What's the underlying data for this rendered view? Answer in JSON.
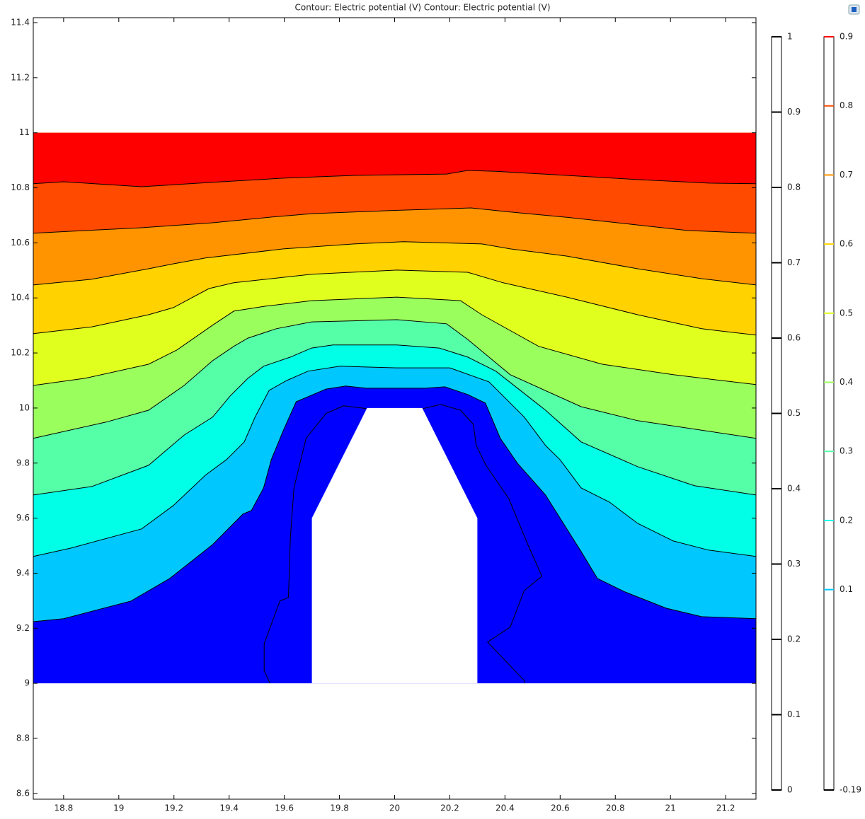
{
  "chart_data": {
    "type": "contour",
    "title": "Contour: Electric potential (V)  Contour: Electric potential (V)",
    "xlim": [
      18.69,
      21.31
    ],
    "ylim": [
      8.579,
      11.418
    ],
    "xticks": [
      18.8,
      19,
      19.2,
      19.4,
      19.6,
      19.8,
      20,
      20.2,
      20.4,
      20.6,
      20.8,
      21,
      21.2
    ],
    "yticks": [
      8.6,
      8.8,
      9,
      9.2,
      9.4,
      9.6,
      9.8,
      10,
      10.2,
      10.4,
      10.6,
      10.8,
      11,
      11.2,
      11.4
    ],
    "domain_ylim": [
      9,
      11
    ],
    "base_color": "#0000ff",
    "excluded": {
      "x": [
        19.7,
        19.7,
        19.9,
        20.1,
        20.3,
        20.3
      ],
      "y": [
        9,
        9.6,
        10,
        10,
        9.6,
        9
      ]
    },
    "series": [
      {
        "level": 0,
        "x": [
          19.548,
          19.527,
          19.527,
          19.584,
          19.615,
          19.622,
          19.635,
          19.679,
          19.751,
          19.815,
          19.897,
          null,
          20.103,
          20.167,
          20.239,
          20.285,
          20.296,
          20.331,
          20.414,
          20.483,
          20.534,
          20.47,
          20.457,
          20.419,
          20.337,
          20.47,
          20.473
        ],
        "y": [
          9.0,
          9.046,
          9.144,
          9.299,
          9.312,
          9.53,
          9.71,
          9.89,
          9.98,
          10.008,
          9.998,
          null,
          9.998,
          10.013,
          9.992,
          9.941,
          9.864,
          9.792,
          9.671,
          9.504,
          9.389,
          9.337,
          9.304,
          9.204,
          9.15,
          9.01,
          9.0
        ]
      },
      {
        "level": 0.1,
        "color": "#00c8ff",
        "x": [
          18.69,
          18.8,
          19.044,
          19.185,
          19.34,
          19.45,
          19.481,
          19.525,
          19.553,
          19.597,
          19.643,
          19.751,
          19.823,
          19.897,
          20.11,
          20.182,
          20.265,
          20.329,
          20.383,
          20.445,
          20.547,
          20.676,
          20.735,
          20.835,
          20.984,
          21.113,
          21.31
        ],
        "y": [
          9.224,
          9.235,
          9.299,
          9.381,
          9.504,
          9.615,
          9.628,
          9.71,
          9.813,
          9.92,
          10.023,
          10.069,
          10.08,
          10.072,
          10.072,
          10.077,
          10.049,
          10.018,
          9.89,
          9.8,
          9.684,
          9.479,
          9.381,
          9.332,
          9.273,
          9.242,
          9.235
        ]
      },
      {
        "level": 0.2,
        "color": "#00ffe6",
        "x": [
          18.69,
          18.826,
          19.083,
          19.198,
          19.314,
          19.391,
          19.455,
          19.494,
          19.545,
          19.609,
          19.686,
          19.802,
          20.008,
          20.2,
          20.342,
          20.47,
          20.547,
          20.599,
          20.676,
          20.779,
          20.881,
          21.01,
          21.138,
          21.31
        ],
        "y": [
          9.461,
          9.491,
          9.561,
          9.646,
          9.756,
          9.813,
          9.877,
          9.967,
          10.064,
          10.1,
          10.134,
          10.152,
          10.146,
          10.146,
          10.095,
          9.967,
          9.864,
          9.813,
          9.71,
          9.658,
          9.581,
          9.517,
          9.484,
          9.461
        ]
      },
      {
        "level": 0.3,
        "color": "#55ffa8",
        "x": [
          18.69,
          18.903,
          19.108,
          19.237,
          19.34,
          19.404,
          19.468,
          19.525,
          19.622,
          19.699,
          19.776,
          20.008,
          20.162,
          20.265,
          20.367,
          20.547,
          20.676,
          20.881,
          21.087,
          21.31
        ],
        "y": [
          9.684,
          9.715,
          9.792,
          9.902,
          9.967,
          10.044,
          10.108,
          10.152,
          10.185,
          10.218,
          10.229,
          10.229,
          10.218,
          10.185,
          10.134,
          9.992,
          9.877,
          9.787,
          9.718,
          9.684
        ]
      },
      {
        "level": 0.4,
        "color": "#9aff5c",
        "x": [
          18.69,
          18.954,
          19.108,
          19.237,
          19.34,
          19.417,
          19.468,
          19.571,
          19.699,
          20.008,
          20.188,
          20.265,
          20.419,
          20.676,
          20.881,
          21.31
        ],
        "y": [
          9.89,
          9.949,
          9.992,
          10.082,
          10.172,
          10.224,
          10.254,
          10.288,
          10.313,
          10.321,
          10.306,
          10.249,
          10.121,
          10.005,
          9.954,
          9.89
        ]
      },
      {
        "level": 0.5,
        "color": "#e0ff1e",
        "x": [
          18.69,
          18.877,
          19.108,
          19.211,
          19.34,
          19.417,
          19.532,
          19.699,
          20.008,
          20.239,
          20.316,
          20.522,
          20.753,
          21.01,
          21.31
        ],
        "y": [
          10.082,
          10.108,
          10.159,
          10.211,
          10.301,
          10.352,
          10.37,
          10.39,
          10.403,
          10.39,
          10.339,
          10.224,
          10.159,
          10.121,
          10.085
        ]
      },
      {
        "level": 0.6,
        "color": "#ffd200",
        "x": [
          18.69,
          18.903,
          19.108,
          19.198,
          19.327,
          19.417,
          19.699,
          20.008,
          20.265,
          20.393,
          20.624,
          20.881,
          21.113,
          21.31
        ],
        "y": [
          10.27,
          10.295,
          10.339,
          10.365,
          10.434,
          10.455,
          10.486,
          10.501,
          10.493,
          10.455,
          10.403,
          10.339,
          10.288,
          10.265
        ]
      },
      {
        "level": 0.7,
        "color": "#ff9400",
        "x": [
          18.69,
          18.903,
          19.108,
          19.198,
          19.314,
          19.597,
          19.853,
          20.033,
          20.316,
          20.419,
          20.624,
          20.881,
          21.113,
          21.31
        ],
        "y": [
          10.447,
          10.468,
          10.506,
          10.524,
          10.545,
          10.578,
          10.596,
          10.604,
          10.596,
          10.578,
          10.552,
          10.506,
          10.47,
          10.447
        ]
      },
      {
        "level": 0.8,
        "color": "#ff4a00",
        "x": [
          18.69,
          18.826,
          19.083,
          19.34,
          19.545,
          19.699,
          19.982,
          20.277,
          20.419,
          20.624,
          20.881,
          21.061,
          21.31
        ],
        "y": [
          10.635,
          10.642,
          10.655,
          10.673,
          10.693,
          10.706,
          10.717,
          10.727,
          10.712,
          10.693,
          10.665,
          10.645,
          10.635
        ]
      },
      {
        "level": 0.9,
        "color": "#ff0000",
        "x": [
          18.69,
          18.8,
          19.083,
          19.34,
          19.597,
          19.853,
          20.188,
          20.265,
          20.367,
          20.624,
          20.881,
          21.138,
          21.31
        ],
        "y": [
          10.815,
          10.822,
          10.804,
          10.82,
          10.835,
          10.845,
          10.85,
          10.863,
          10.86,
          10.845,
          10.83,
          10.817,
          10.815
        ]
      }
    ],
    "colorbars": [
      {
        "lim": [
          0,
          1
        ],
        "ticks": [
          0,
          0.1,
          0.2,
          0.3,
          0.4,
          0.5,
          0.6,
          0.7,
          0.8,
          0.9,
          1
        ]
      },
      {
        "lim": [
          -0.19,
          0.9
        ],
        "ticks": [
          -0.19,
          0.1,
          0.2,
          0.3,
          0.4,
          0.5,
          0.6,
          0.7,
          0.8,
          0.9
        ]
      }
    ]
  }
}
